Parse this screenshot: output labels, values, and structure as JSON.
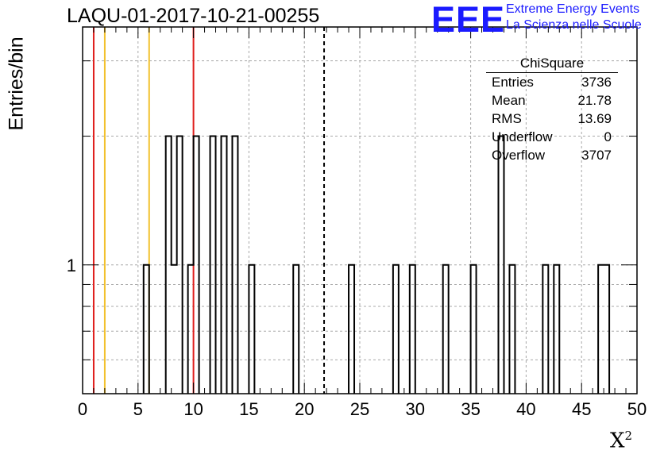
{
  "title": "LAQU-01-2017-10-21-00255",
  "logo": {
    "mark": "EEE",
    "line1": "Extreme Energy Events",
    "line2": "La Scienza nelle Scuole",
    "color": "#1a1aff"
  },
  "stats_box": {
    "name": "ChiSquare",
    "rows": [
      {
        "label": "Entries",
        "value": "3736"
      },
      {
        "label": "Mean",
        "value": "21.78"
      },
      {
        "label": "RMS",
        "value": "13.69"
      },
      {
        "label": "Underflow",
        "value": "0"
      },
      {
        "label": "Overflow",
        "value": "3707"
      }
    ]
  },
  "chart_data": {
    "type": "histogram",
    "title": "LAQU-01-2017-10-21-00255",
    "xlabel": "X",
    "xlabel_superscript": "2",
    "ylabel": "Entries/bin",
    "xlim": [
      0,
      50
    ],
    "ylim": [
      0.5,
      3.6
    ],
    "yscale": "log",
    "grid": true,
    "bin_width": 0.5,
    "x_ticks": [
      0,
      5,
      10,
      15,
      20,
      25,
      30,
      35,
      40,
      45,
      50
    ],
    "y_ticks": [
      1
    ],
    "bins": [
      {
        "x": 5.5,
        "count": 1
      },
      {
        "x": 7.5,
        "count": 2
      },
      {
        "x": 8.0,
        "count": 1
      },
      {
        "x": 8.5,
        "count": 2
      },
      {
        "x": 9.5,
        "count": 1
      },
      {
        "x": 10.0,
        "count": 2
      },
      {
        "x": 11.5,
        "count": 2
      },
      {
        "x": 12.5,
        "count": 2
      },
      {
        "x": 13.5,
        "count": 2
      },
      {
        "x": 15.0,
        "count": 1
      },
      {
        "x": 19.0,
        "count": 1
      },
      {
        "x": 24.0,
        "count": 1
      },
      {
        "x": 28.0,
        "count": 1
      },
      {
        "x": 29.5,
        "count": 1
      },
      {
        "x": 32.5,
        "count": 1
      },
      {
        "x": 35.0,
        "count": 1
      },
      {
        "x": 37.5,
        "count": 2
      },
      {
        "x": 38.5,
        "count": 1
      },
      {
        "x": 41.5,
        "count": 1
      },
      {
        "x": 42.5,
        "count": 1
      },
      {
        "x": 46.5,
        "count": 1
      },
      {
        "x": 47.0,
        "count": 1
      }
    ],
    "reference_lines": [
      {
        "x": 1.0,
        "color": "#e0201e",
        "style": "solid"
      },
      {
        "x": 2.0,
        "color": "#f2c12e",
        "style": "solid"
      },
      {
        "x": 6.0,
        "color": "#f2c12e",
        "style": "solid"
      },
      {
        "x": 10.0,
        "color": "#e0201e",
        "style": "solid"
      },
      {
        "x": 21.78,
        "color": "#000000",
        "style": "dashed"
      }
    ]
  }
}
